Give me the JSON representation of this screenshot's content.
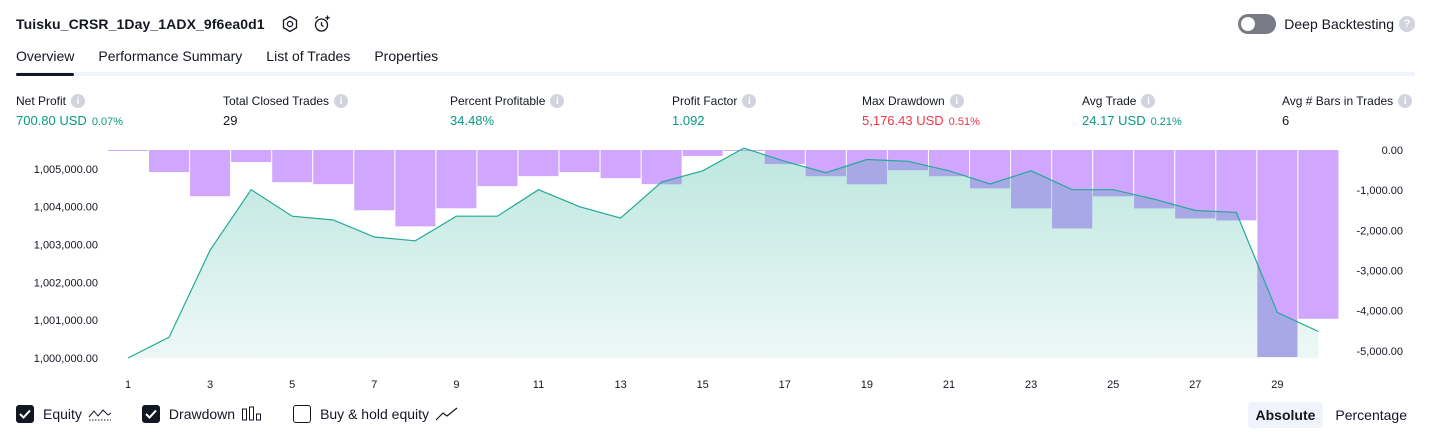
{
  "header": {
    "strategy_name": "Tuisku_CRSR_1Day_1ADX_9f6ea0d1",
    "settings_icon": "hexagon-gear-icon",
    "alert_icon": "alarm-clock-plus-icon"
  },
  "deep_backtesting": {
    "label": "Deep Backtesting",
    "enabled": false,
    "help": "?"
  },
  "tabs": [
    {
      "label": "Overview",
      "active": true
    },
    {
      "label": "Performance Summary",
      "active": false
    },
    {
      "label": "List of Trades",
      "active": false
    },
    {
      "label": "Properties",
      "active": false
    }
  ],
  "metrics": {
    "net_profit": {
      "label": "Net Profit",
      "value": "700.80 USD",
      "sub": "0.07%"
    },
    "total_closed_trades": {
      "label": "Total Closed Trades",
      "value": "29"
    },
    "percent_profitable": {
      "label": "Percent Profitable",
      "value": "34.48%"
    },
    "profit_factor": {
      "label": "Profit Factor",
      "value": "1.092"
    },
    "max_drawdown": {
      "label": "Max Drawdown",
      "value": "5,176.43 USD",
      "sub": "0.51%"
    },
    "avg_trade": {
      "label": "Avg Trade",
      "value": "24.17 USD",
      "sub": "0.21%"
    },
    "avg_bars": {
      "label": "Avg # Bars in Trades",
      "value": "6"
    },
    "info_glyph": "i"
  },
  "colors": {
    "equity_line": "#22ab94",
    "equity_fill": "#22ab94",
    "drawdown_bar": "#d1a6ff",
    "drawdown_overlap": "#a8a8e6",
    "positive": "#089981",
    "negative": "#f23645",
    "text": "#131722"
  },
  "chart_data": {
    "type": "area",
    "x": [
      1,
      2,
      3,
      4,
      5,
      6,
      7,
      8,
      9,
      10,
      11,
      12,
      13,
      14,
      15,
      16,
      17,
      18,
      19,
      20,
      21,
      22,
      23,
      24,
      25,
      26,
      27,
      28,
      29,
      30
    ],
    "x_tick_labels": [
      "1",
      "3",
      "5",
      "7",
      "9",
      "11",
      "13",
      "15",
      "17",
      "19",
      "21",
      "23",
      "25",
      "27",
      "29"
    ],
    "series": [
      {
        "axis": "left",
        "kind": "line-area",
        "values": [
          1000000,
          1000550,
          1002850,
          1004450,
          1003750,
          1003650,
          1003200,
          1003100,
          1003750,
          1003750,
          1004450,
          1004000,
          1003700,
          1004650,
          1004950,
          1005550,
          1005200,
          1004900,
          1005250,
          1005200,
          1004950,
          1004600,
          1004950,
          1004450,
          1004450,
          1004200,
          1003900,
          1003850,
          1001200,
          1000700
        ]
      },
      {
        "axis": "right",
        "kind": "bar",
        "values": [
          0,
          -550,
          -1150,
          -300,
          -800,
          -850,
          -1500,
          -1900,
          -1450,
          -900,
          -650,
          -550,
          -700,
          -850,
          -150,
          0,
          -350,
          -650,
          -850,
          -500,
          -650,
          -950,
          -1450,
          -1950,
          -1150,
          -1450,
          -1700,
          -1750,
          -5150,
          -4200
        ]
      }
    ],
    "left_axis": {
      "ylim": [
        1000000,
        1005500
      ],
      "tick_labels": [
        "1,000,000.00",
        "1,001,000.00",
        "1,002,000.00",
        "1,003,000.00",
        "1,004,000.00",
        "1,005,000.00"
      ]
    },
    "right_axis": {
      "ylim": [
        -5176.43,
        0
      ],
      "tick_labels": [
        "0.00",
        "-1,000.00",
        "-2,000.00",
        "-3,000.00",
        "-4,000.00",
        "-5,000.00"
      ]
    }
  },
  "legend": {
    "equity": {
      "label": "Equity",
      "checked": true,
      "icon": "equity-line-icon"
    },
    "drawdown": {
      "label": "Drawdown",
      "checked": true,
      "icon": "drawdown-bars-icon"
    },
    "buy_hold": {
      "label": "Buy & hold equity",
      "checked": false,
      "icon": "trend-line-icon"
    }
  },
  "mode": {
    "absolute": "Absolute",
    "percentage": "Percentage",
    "selected": "absolute"
  }
}
